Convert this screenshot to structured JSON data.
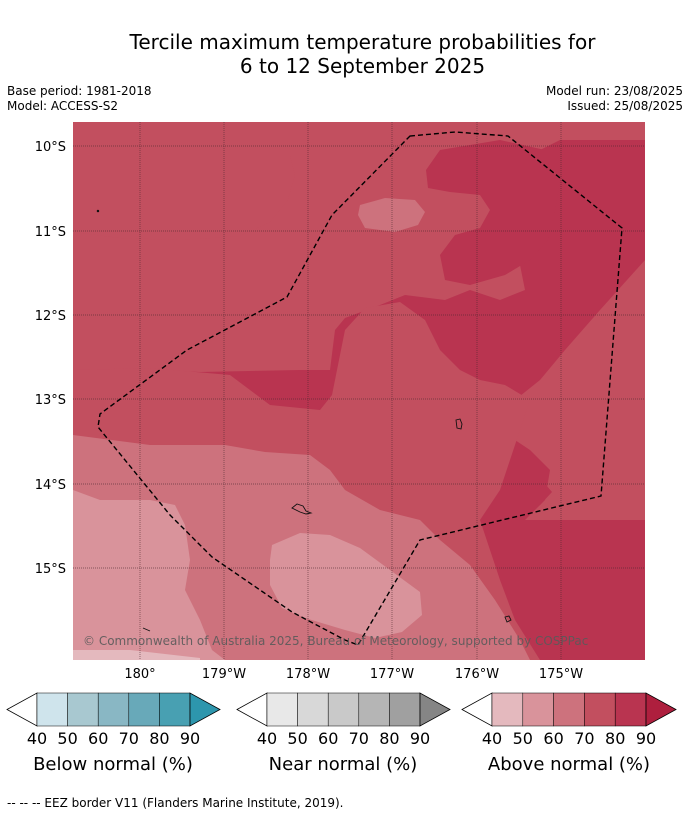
{
  "title": {
    "line1": "Tercile maximum temperature probabilities for",
    "line2": "6 to 12 September 2025"
  },
  "meta": {
    "base_period": "Base period: 1981-2018",
    "model": "Model: ACCESS-S2",
    "model_run": "Model run: 23/08/2025",
    "issued": "Issued: 25/08/2025"
  },
  "map": {
    "lat_labels": [
      "10°S",
      "11°S",
      "12°S",
      "13°S",
      "14°S",
      "15°S"
    ],
    "lon_labels": [
      "180°",
      "179°W",
      "178°W",
      "177°W",
      "176°W",
      "175°W"
    ],
    "copyright": "© Commonwealth of Australia 2025, Bureau of Meteorology, supported by COSPPac"
  },
  "legend": {
    "ticks": [
      "40",
      "50",
      "60",
      "70",
      "80",
      "90"
    ],
    "below": {
      "label": "Below normal (%)",
      "colors": [
        "#cfe4ec",
        "#a8c8d0",
        "#89b7c4",
        "#68a9b9",
        "#48a0b2",
        "#2d96ad"
      ]
    },
    "near": {
      "label": "Near normal (%)",
      "colors": [
        "#e8e8e8",
        "#d8d8d8",
        "#c9c9c9",
        "#b5b5b5",
        "#a0a0a0",
        "#858585"
      ]
    },
    "above": {
      "label": "Above normal (%)",
      "colors": [
        "#e4b9be",
        "#d9939b",
        "#cd727d",
        "#c24f5f",
        "#b93450",
        "#ae1f3e"
      ]
    }
  },
  "footer": "--  --  -- EEZ border V11 (Flanders Marine Institute, 2019)."
}
